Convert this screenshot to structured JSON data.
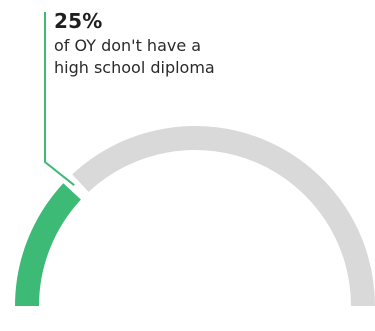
{
  "chart_data": {
    "type": "gauge",
    "value_percent": 25,
    "remainder_percent": 75,
    "value_label": "25%",
    "description": "of OY don't have a high school diploma",
    "description_lines": [
      "of OY don't have a",
      "high school diploma"
    ],
    "colors": {
      "filled": "#3dbb76",
      "track": "#d9d9d9",
      "leader_line": "#3dbb76",
      "text": "#1f1f1f"
    }
  }
}
